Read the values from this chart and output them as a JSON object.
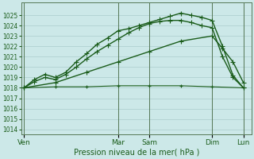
{
  "xlabel": "Pression niveau de la mer( hPa )",
  "bg_color": "#cce8e8",
  "grid_color": "#aacccc",
  "line_color_dark": "#1a5c1a",
  "ylim": [
    1013.5,
    1026.2
  ],
  "yticks": [
    1014,
    1015,
    1016,
    1017,
    1018,
    1019,
    1020,
    1021,
    1022,
    1023,
    1024,
    1025
  ],
  "day_labels": [
    "Ven",
    "Mar",
    "Sam",
    "Dim",
    "Lun"
  ],
  "day_positions": [
    0,
    18,
    24,
    36,
    42
  ],
  "xlim": [
    -0.5,
    43.5
  ],
  "series": [
    {
      "x": [
        0,
        2,
        4,
        6,
        8,
        10,
        12,
        14,
        16,
        18,
        20,
        22,
        24,
        26,
        28,
        30,
        32,
        34,
        36,
        38,
        40,
        42
      ],
      "y": [
        1018.0,
        1018.8,
        1019.3,
        1019.0,
        1019.5,
        1020.5,
        1021.3,
        1022.2,
        1022.8,
        1023.5,
        1023.7,
        1024.0,
        1024.3,
        1024.6,
        1024.9,
        1025.2,
        1025.0,
        1024.8,
        1024.5,
        1022.0,
        1019.2,
        1018.0
      ],
      "marker": "+",
      "ms": 4,
      "lw": 1.0,
      "color": "#1a5c1a"
    },
    {
      "x": [
        0,
        2,
        4,
        6,
        8,
        10,
        12,
        14,
        16,
        18,
        20,
        22,
        24,
        26,
        28,
        30,
        32,
        34,
        36,
        38,
        40,
        42
      ],
      "y": [
        1018.0,
        1018.6,
        1019.0,
        1018.8,
        1019.3,
        1020.0,
        1020.8,
        1021.5,
        1022.1,
        1022.7,
        1023.3,
        1023.8,
        1024.2,
        1024.4,
        1024.5,
        1024.5,
        1024.3,
        1024.0,
        1023.8,
        1021.0,
        1019.0,
        1018.0
      ],
      "marker": "+",
      "ms": 4,
      "lw": 1.0,
      "color": "#1a5c1a"
    },
    {
      "x": [
        0,
        6,
        12,
        18,
        24,
        30,
        36,
        38,
        40,
        42
      ],
      "y": [
        1018.0,
        1018.5,
        1019.5,
        1020.5,
        1021.5,
        1022.5,
        1023.0,
        1021.8,
        1020.5,
        1018.5
      ],
      "marker": "+",
      "ms": 4,
      "lw": 1.0,
      "color": "#1a5c1a"
    },
    {
      "x": [
        0,
        6,
        12,
        18,
        24,
        30,
        36,
        42
      ],
      "y": [
        1018.0,
        1018.1,
        1018.1,
        1018.2,
        1018.2,
        1018.2,
        1018.1,
        1018.0
      ],
      "marker": "+",
      "ms": 3,
      "lw": 0.8,
      "color": "#1a5c1a"
    }
  ],
  "vlines": [
    0,
    18,
    24,
    36,
    42
  ],
  "vline_color": "#557755"
}
